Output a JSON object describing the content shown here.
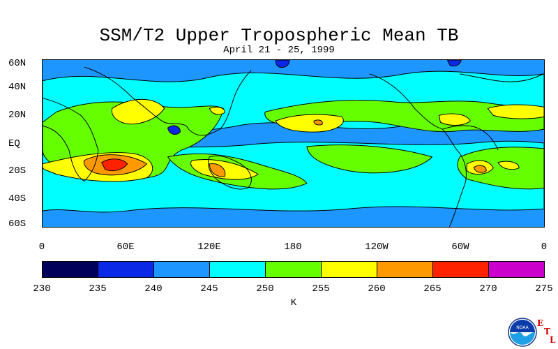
{
  "title": "SSM/T2 Upper Tropospheric Mean TB",
  "subtitle": "April 21 - 25, 1999",
  "lat_labels": [
    "60N",
    "40N",
    "20N",
    "EQ",
    "20S",
    "40S",
    "60S"
  ],
  "lon_labels": [
    "0",
    "60E",
    "120E",
    "180",
    "120W",
    "60W",
    "0"
  ],
  "colorbar": {
    "units": "K",
    "ticks": [
      "230",
      "235",
      "240",
      "245",
      "250",
      "255",
      "260",
      "265",
      "270",
      "275"
    ],
    "colors": [
      "#00005a",
      "#0a28e6",
      "#1e96ff",
      "#00ffff",
      "#66ff00",
      "#ffff00",
      "#ff9900",
      "#ff2200",
      "#cc00cc"
    ]
  },
  "logo": {
    "icon": "noaa-logo",
    "text": "NOAA",
    "lab_letters": [
      "E",
      "T",
      "L"
    ]
  }
}
